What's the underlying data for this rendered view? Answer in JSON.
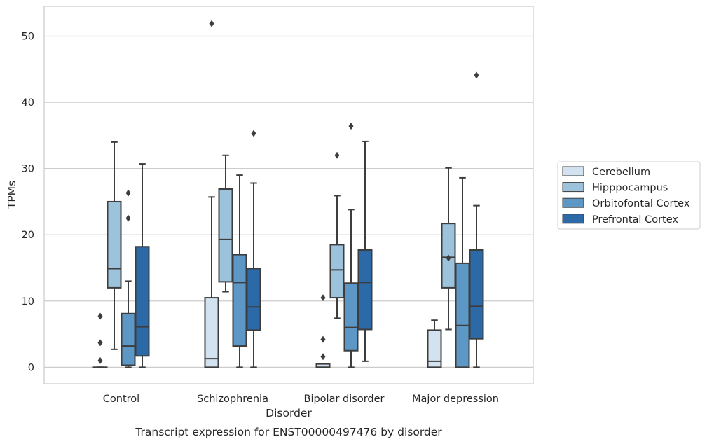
{
  "caption": "Transcript expression for ENST00000497476 by disorder",
  "chart_data": {
    "type": "boxplot",
    "xlabel": "Disorder",
    "ylabel": "TPMs",
    "ylim": [
      -2.5,
      54.5
    ],
    "yticks": [
      0,
      10,
      20,
      30,
      40,
      50
    ],
    "grid": "horizontal",
    "legend_position": "right",
    "categories": [
      "Control",
      "Schizophrenia",
      "Bipolar disorder",
      "Major depression"
    ],
    "series": [
      {
        "name": "Cerebellum",
        "color": "#d3e2f0",
        "boxes": [
          {
            "whisker_low": 0,
            "q1": 0,
            "median": 0,
            "q3": 0,
            "whisker_high": 0,
            "outliers": [
              7.7,
              3.7,
              1.0
            ]
          },
          {
            "whisker_low": 0,
            "q1": 0,
            "median": 1.3,
            "q3": 10.5,
            "whisker_high": 25.7,
            "outliers": [
              51.9
            ]
          },
          {
            "whisker_low": 0,
            "q1": 0,
            "median": 0,
            "q3": 0.5,
            "whisker_high": 0.5,
            "outliers": [
              10.5,
              4.2,
              1.6
            ]
          },
          {
            "whisker_low": 0,
            "q1": 0,
            "median": 0.9,
            "q3": 5.6,
            "whisker_high": 7.1,
            "outliers": []
          }
        ]
      },
      {
        "name": "Hipppocampus",
        "color": "#9cc2dc",
        "boxes": [
          {
            "whisker_low": 2.7,
            "q1": 12.0,
            "median": 14.9,
            "q3": 25.0,
            "whisker_high": 34.0,
            "outliers": []
          },
          {
            "whisker_low": 11.4,
            "q1": 12.9,
            "median": 19.3,
            "q3": 26.9,
            "whisker_high": 32.0,
            "outliers": []
          },
          {
            "whisker_low": 7.4,
            "q1": 10.5,
            "median": 14.7,
            "q3": 18.5,
            "whisker_high": 25.9,
            "outliers": [
              32.0
            ]
          },
          {
            "whisker_low": 5.7,
            "q1": 12.0,
            "median": 16.6,
            "q3": 21.7,
            "whisker_high": 30.1,
            "outliers": [
              16.5
            ]
          }
        ]
      },
      {
        "name": "Orbitofontal Cortex",
        "color": "#5c97c5",
        "boxes": [
          {
            "whisker_low": 0,
            "q1": 0.3,
            "median": 3.2,
            "q3": 8.1,
            "whisker_high": 13.0,
            "outliers": [
              26.3,
              22.5
            ]
          },
          {
            "whisker_low": 0,
            "q1": 3.2,
            "median": 12.8,
            "q3": 17.0,
            "whisker_high": 29.0,
            "outliers": []
          },
          {
            "whisker_low": 0,
            "q1": 2.5,
            "median": 6.0,
            "q3": 12.7,
            "whisker_high": 23.8,
            "outliers": [
              36.4
            ]
          },
          {
            "whisker_low": 0,
            "q1": 0,
            "median": 6.3,
            "q3": 15.7,
            "whisker_high": 28.6,
            "outliers": []
          }
        ]
      },
      {
        "name": "Prefrontal Cortex",
        "color": "#2b6aa7",
        "boxes": [
          {
            "whisker_low": 0,
            "q1": 1.7,
            "median": 6.1,
            "q3": 18.2,
            "whisker_high": 30.7,
            "outliers": []
          },
          {
            "whisker_low": 0,
            "q1": 5.6,
            "median": 9.1,
            "q3": 14.9,
            "whisker_high": 27.8,
            "outliers": [
              35.3
            ]
          },
          {
            "whisker_low": 0.9,
            "q1": 5.7,
            "median": 12.8,
            "q3": 17.7,
            "whisker_high": 34.1,
            "outliers": []
          },
          {
            "whisker_low": 0,
            "q1": 4.3,
            "median": 9.2,
            "q3": 17.7,
            "whisker_high": 24.4,
            "outliers": [
              44.1
            ]
          }
        ]
      }
    ]
  }
}
